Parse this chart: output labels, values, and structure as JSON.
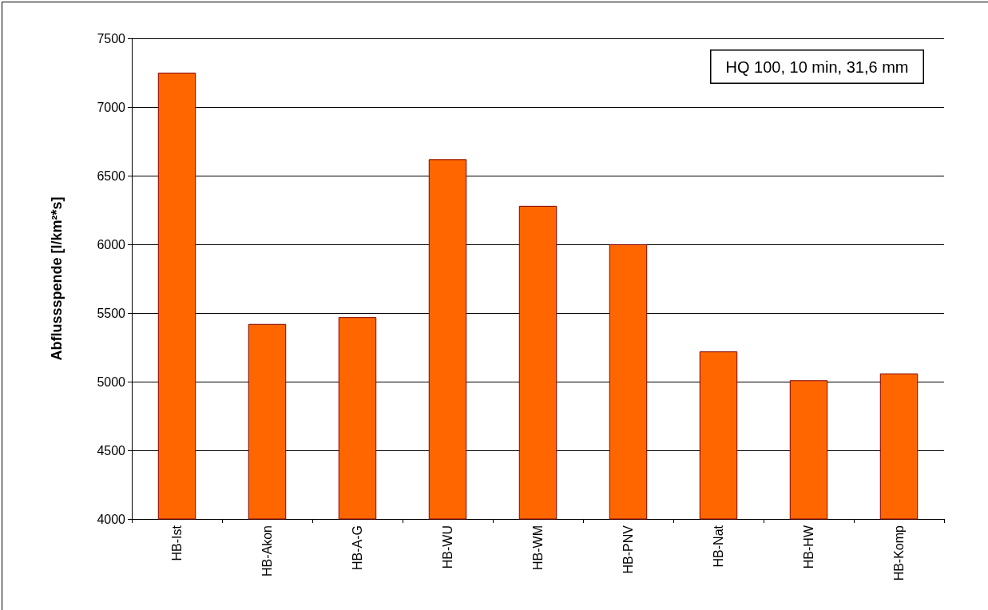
{
  "chart_data": {
    "type": "bar",
    "ylabel": "Abflussspende [l/km²*s]",
    "annotations": [
      "HQ 100, 10 min, 31,6 mm"
    ],
    "categories": [
      "HB-Ist",
      "HB-Akon",
      "HB-A-G",
      "HB-WU",
      "HB-WM",
      "HB-PNV",
      "HB-Nat",
      "HB-HW",
      "HB-Komp"
    ],
    "values": [
      7250,
      5420,
      5470,
      6620,
      6280,
      6000,
      5220,
      5010,
      5060
    ],
    "color": "#ff6600",
    "ylim": [
      4000,
      7500
    ],
    "yticks": [
      4000,
      4500,
      5000,
      5500,
      6000,
      6500,
      7000,
      7500
    ],
    "grid": "y"
  }
}
